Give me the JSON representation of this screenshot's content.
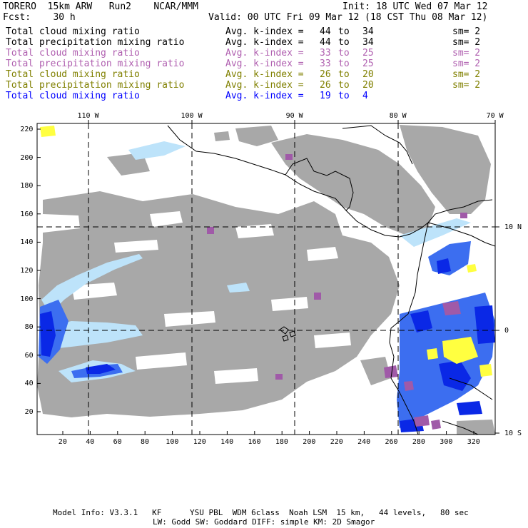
{
  "header": {
    "line1_left": "TORERO  15km ARW   Run2    NCAR/MMM",
    "line1_right": "Init: 18 UTC Wed 07 Mar 12",
    "line2_left": "Fcst:    30 h",
    "line2_right": "Valid: 00 UTC Fri 09 Mar 12 (18 CST Thu 08 Mar 12)"
  },
  "legend": [
    {
      "name": "Total cloud mixing ratio",
      "index_label": "Avg. k-index =",
      "from": "44",
      "to_word": "to",
      "to": "34",
      "sm": "sm= 2",
      "color": "#000000"
    },
    {
      "name": "Total precipitation mixing ratio",
      "index_label": "Avg. k-index =",
      "from": "44",
      "to_word": "to",
      "to": "34",
      "sm": "sm= 2",
      "color": "#000000"
    },
    {
      "name": "Total cloud mixing ratio",
      "index_label": "Avg. k-index =",
      "from": "33",
      "to_word": "to",
      "to": "25",
      "sm": "sm= 2",
      "color": "#b060b0"
    },
    {
      "name": "Total precipitation mixing ratio",
      "index_label": "Avg. k-index =",
      "from": "33",
      "to_word": "to",
      "to": "25",
      "sm": "sm= 2",
      "color": "#b060b0"
    },
    {
      "name": "Total cloud mixing ratio",
      "index_label": "Avg. k-index =",
      "from": "26",
      "to_word": "to",
      "to": "20",
      "sm": "sm= 2",
      "color": "#808000"
    },
    {
      "name": "Total precipitation mixing ratio",
      "index_label": "Avg. k-index =",
      "from": "26",
      "to_word": "to",
      "to": "20",
      "sm": "sm= 2",
      "color": "#808000"
    },
    {
      "name": "Total cloud mixing ratio",
      "index_label": "Avg. k-index =",
      "from": "19",
      "to_word": "to",
      "to": "4",
      "sm": "",
      "color": "#0000ff"
    }
  ],
  "map": {
    "top_lon_labels": [
      "110 W",
      "100 W",
      "90 W",
      "80 W",
      "70 W"
    ],
    "right_lat_labels": [
      "10 N",
      "0",
      "10 S"
    ],
    "left_ticks": [
      "220",
      "200",
      "180",
      "160",
      "140",
      "120",
      "100",
      "80",
      "60",
      "40",
      "20"
    ],
    "bottom_ticks": [
      "20",
      "40",
      "60",
      "80",
      "100",
      "120",
      "140",
      "160",
      "180",
      "200",
      "220",
      "240",
      "260",
      "280",
      "300",
      "320"
    ],
    "colors": {
      "cloud_gray": "#a8a8a8",
      "purple": "#a05aa8",
      "yellow": "#ffff40",
      "blue": "#0a28e6",
      "mid_blue": "#3c6ef0",
      "light_blue": "#bde3fa"
    }
  },
  "footer": {
    "line1": "Model Info: V3.3.1   KF      YSU PBL  WDM 6class  Noah LSM  15 km,   44 levels,   80 sec",
    "line2": "LW: Godd SW: Goddard DIFF: simple KM: 2D Smagor"
  }
}
